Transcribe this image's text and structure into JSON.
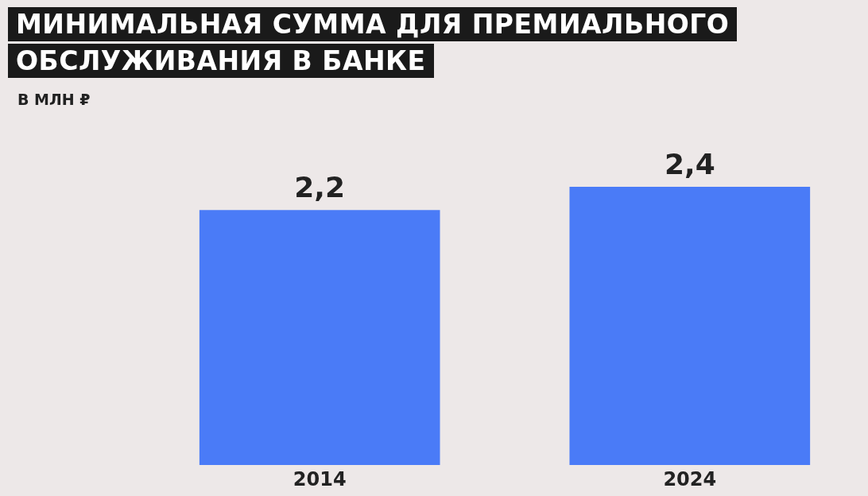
{
  "chart_data": {
    "type": "bar",
    "title": "МИНИМАЛЬНАЯ СУММА ДЛЯ ПРЕМИАЛЬНОГО ОБСЛУЖИВАНИЯ В БАНКЕ",
    "subtitle": "В МЛН ₽",
    "categories": [
      "2014",
      "2024"
    ],
    "values": [
      2.2,
      2.4
    ],
    "value_labels": [
      "2,2",
      "2,4"
    ],
    "color": "#4a7bf7"
  }
}
